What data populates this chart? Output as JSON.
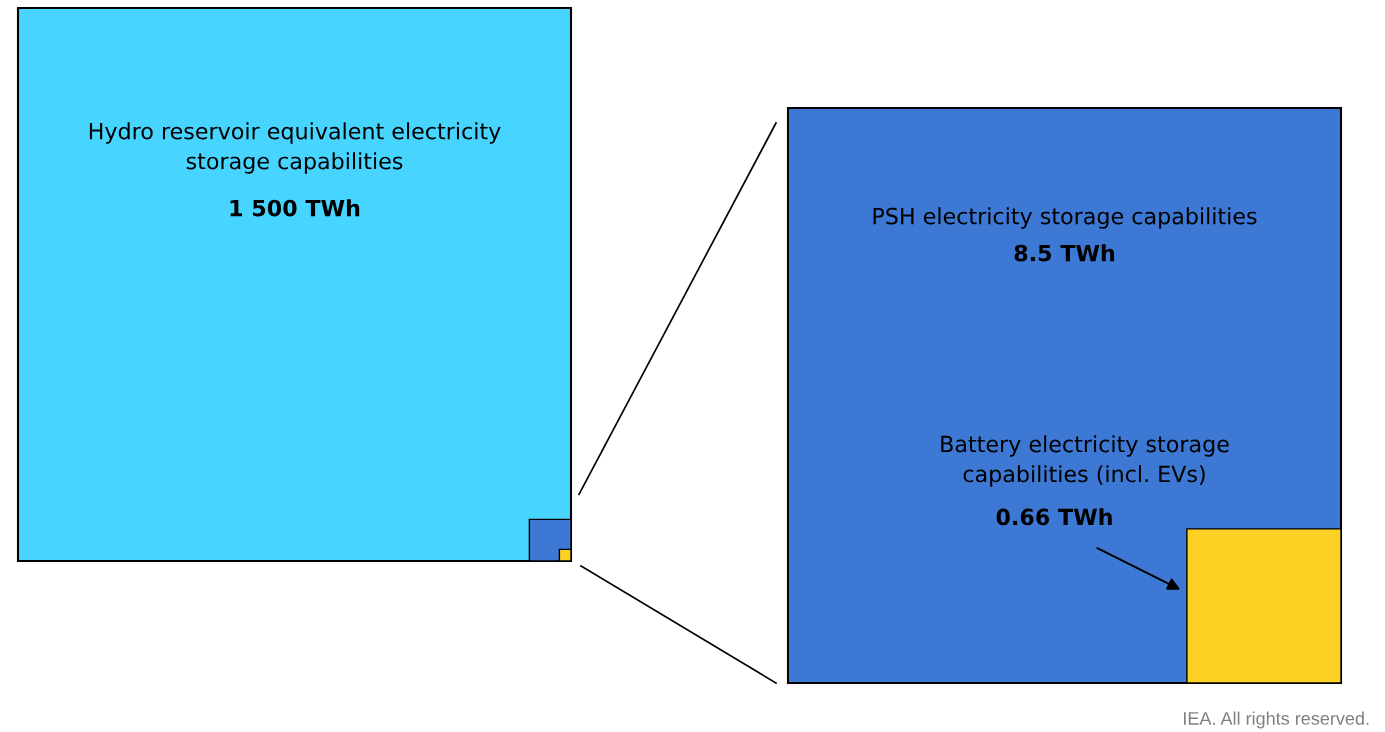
{
  "chart_data": {
    "type": "other",
    "categories": [
      "Hydro reservoir equivalent electricity\nstorage capabilities",
      "PSH electricity storage capabilities",
      "Battery electricity storage\ncapabilities (incl. EVs)"
    ],
    "values": [
      1500,
      8.5,
      0.66
    ],
    "value_labels": [
      "1 500 TWh",
      "8.5 TWh",
      "0.66 TWh"
    ],
    "colors": [
      "#47d4ff",
      "#3c78d4",
      "#fdd123"
    ],
    "annotations": [
      "IEA. All rights reserved."
    ]
  }
}
